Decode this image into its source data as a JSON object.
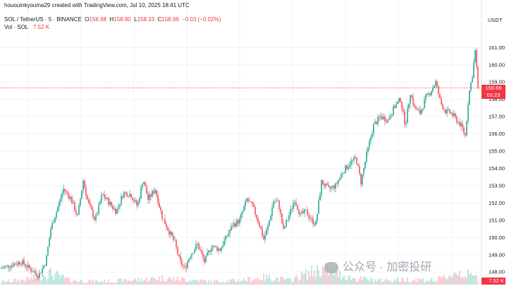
{
  "header": {
    "credit": "hououinkyouma29 created with TradingView.com, Jul 10, 2025 18:41 UTC",
    "symbol": "SOL / TetherUS · 5 · BINANCE",
    "o_label": "O",
    "o_value": "158.68",
    "h_label": "H",
    "h_value": "158.80",
    "l_label": "L",
    "l_value": "158.33",
    "c_label": "C",
    "c_value": "158.66",
    "change": "−0.03 (−0.02%)",
    "vol_label": "Vol · SOL",
    "vol_value": "7.52 K"
  },
  "axis": {
    "unit": "USDT",
    "current_price": "158.66",
    "countdown": "03:23",
    "volume_tag": "7.52 K"
  },
  "watermark": {
    "text": "公众号 · 加密投研"
  },
  "colors": {
    "up": "#089981",
    "down": "#f23645",
    "grid": "#f0f3fa"
  },
  "chart_data": {
    "type": "candlestick",
    "yunit": "USDT",
    "yticks": [
      148,
      149,
      150,
      151,
      152,
      153,
      154,
      155,
      156,
      157,
      158,
      159,
      160,
      161
    ],
    "ylim": [
      147.6,
      162.2
    ],
    "current_price": 158.66,
    "grid": true,
    "price_path": [
      [
        0,
        148.2
      ],
      [
        15,
        148.4
      ],
      [
        30,
        148.6
      ],
      [
        45,
        148.1
      ],
      [
        55,
        147.8
      ],
      [
        65,
        148.6
      ],
      [
        72,
        150.5
      ],
      [
        80,
        151.5
      ],
      [
        90,
        152.8
      ],
      [
        100,
        152.3
      ],
      [
        110,
        151.2
      ],
      [
        118,
        153.3
      ],
      [
        125,
        152.0
      ],
      [
        135,
        151.0
      ],
      [
        145,
        152.5
      ],
      [
        155,
        152.0
      ],
      [
        165,
        151.5
      ],
      [
        175,
        152.6
      ],
      [
        185,
        152.5
      ],
      [
        195,
        151.8
      ],
      [
        203,
        153.4
      ],
      [
        210,
        152.2
      ],
      [
        220,
        152.8
      ],
      [
        230,
        151.2
      ],
      [
        238,
        150.5
      ],
      [
        248,
        149.7
      ],
      [
        255,
        148.6
      ],
      [
        262,
        148.2
      ],
      [
        270,
        149.0
      ],
      [
        280,
        149.6
      ],
      [
        290,
        148.6
      ],
      [
        300,
        149.5
      ],
      [
        312,
        149.3
      ],
      [
        322,
        150.1
      ],
      [
        330,
        150.7
      ],
      [
        340,
        151.0
      ],
      [
        350,
        152.2
      ],
      [
        358,
        151.8
      ],
      [
        366,
        151.0
      ],
      [
        374,
        149.9
      ],
      [
        380,
        150.6
      ],
      [
        388,
        152.1
      ],
      [
        395,
        152.0
      ],
      [
        402,
        150.4
      ],
      [
        410,
        151.3
      ],
      [
        418,
        152.2
      ],
      [
        426,
        151.3
      ],
      [
        434,
        151.5
      ],
      [
        442,
        151.0
      ],
      [
        448,
        150.8
      ],
      [
        456,
        153.2
      ],
      [
        466,
        152.8
      ],
      [
        476,
        153.0
      ],
      [
        486,
        153.8
      ],
      [
        496,
        154.3
      ],
      [
        505,
        154.6
      ],
      [
        512,
        153.2
      ],
      [
        520,
        154.8
      ],
      [
        530,
        156.5
      ],
      [
        540,
        157.0
      ],
      [
        550,
        156.8
      ],
      [
        560,
        157.6
      ],
      [
        568,
        158.0
      ],
      [
        575,
        156.5
      ],
      [
        582,
        158.4
      ],
      [
        588,
        157.5
      ],
      [
        596,
        157.2
      ],
      [
        604,
        158.1
      ],
      [
        610,
        158.4
      ],
      [
        618,
        159.0
      ],
      [
        625,
        157.8
      ],
      [
        632,
        157.3
      ],
      [
        640,
        157.2
      ],
      [
        648,
        156.8
      ],
      [
        655,
        156.4
      ],
      [
        660,
        155.9
      ],
      [
        665,
        158.3
      ],
      [
        670,
        159.4
      ],
      [
        674,
        160.8
      ],
      [
        678,
        158.7
      ]
    ],
    "volume_profile": [
      [
        0,
        0.12
      ],
      [
        40,
        0.25
      ],
      [
        70,
        0.55
      ],
      [
        100,
        0.2
      ],
      [
        140,
        0.15
      ],
      [
        180,
        0.2
      ],
      [
        230,
        0.3
      ],
      [
        260,
        0.25
      ],
      [
        300,
        0.15
      ],
      [
        340,
        0.2
      ],
      [
        380,
        0.35
      ],
      [
        410,
        0.2
      ],
      [
        456,
        0.75
      ],
      [
        500,
        0.3
      ],
      [
        540,
        0.2
      ],
      [
        580,
        0.25
      ],
      [
        620,
        0.2
      ],
      [
        650,
        0.6
      ],
      [
        678,
        0.3
      ]
    ]
  }
}
